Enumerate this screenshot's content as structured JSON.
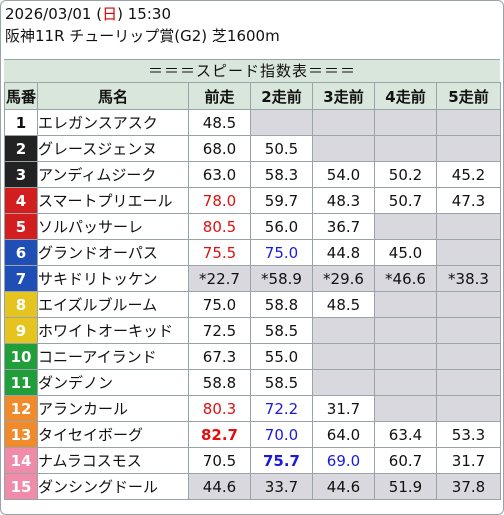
{
  "header": {
    "date": "2026/03/01",
    "day_open": "(",
    "day": "日",
    "day_close": ")",
    "time": "15:30",
    "race": "阪神11R チューリップ賞(G2) 芝1600m"
  },
  "banner": "＝＝＝スピード指数表＝＝＝",
  "columns": [
    "馬番",
    "馬名",
    "前走",
    "2走前",
    "3走前",
    "4走前",
    "5走前"
  ],
  "colors": {
    "frame1": "#ffffff",
    "frame2": "#222222",
    "frame3": "#d21e1e",
    "frame4": "#d21e1e",
    "frame5": "#e8e8f0",
    "frame6": "#1f4fb4",
    "frame7": "#e6c41f",
    "frame8": "#1f9e3a",
    "red_text": "#e01010",
    "blue_text": "#1a1adc",
    "header_bg": "#d9e6dc",
    "empty_bg": "#d8d8de"
  },
  "rows": [
    {
      "num": "1",
      "name": "エレガンスアスク",
      "bg": "#ffffff",
      "fg": "#111111",
      "cells": [
        {
          "v": "48.5"
        },
        {
          "v": "",
          "e": true
        },
        {
          "v": "",
          "e": true
        },
        {
          "v": "",
          "e": true
        },
        {
          "v": "",
          "e": true
        }
      ]
    },
    {
      "num": "2",
      "name": "グレースジェンヌ",
      "bg": "#222222",
      "fg": "#ffffff",
      "cells": [
        {
          "v": "68.0"
        },
        {
          "v": "50.5"
        },
        {
          "v": "",
          "e": true
        },
        {
          "v": "",
          "e": true
        },
        {
          "v": "",
          "e": true
        }
      ]
    },
    {
      "num": "3",
      "name": "アンディムジーク",
      "bg": "#222222",
      "fg": "#ffffff",
      "cells": [
        {
          "v": "63.0"
        },
        {
          "v": "58.3"
        },
        {
          "v": "54.0"
        },
        {
          "v": "50.2"
        },
        {
          "v": "45.2"
        }
      ]
    },
    {
      "num": "4",
      "name": "スマートプリエール",
      "bg": "#d21e1e",
      "fg": "#ffffff",
      "cells": [
        {
          "v": "78.0",
          "c": "red"
        },
        {
          "v": "59.7"
        },
        {
          "v": "48.3"
        },
        {
          "v": "50.7"
        },
        {
          "v": "47.3"
        }
      ]
    },
    {
      "num": "5",
      "name": "ソルパッサーレ",
      "bg": "#d21e1e",
      "fg": "#ffffff",
      "cells": [
        {
          "v": "80.5",
          "c": "red"
        },
        {
          "v": "56.0"
        },
        {
          "v": "36.7"
        },
        {
          "v": "",
          "e": true
        },
        {
          "v": "",
          "e": true
        }
      ]
    },
    {
      "num": "6",
      "name": "グランドオーパス",
      "bg": "#1f4fb4",
      "fg": "#ffffff",
      "cells": [
        {
          "v": "75.5",
          "c": "red"
        },
        {
          "v": "75.0",
          "c": "blue"
        },
        {
          "v": "44.8"
        },
        {
          "v": "45.0"
        },
        {
          "v": "",
          "e": true
        }
      ]
    },
    {
      "num": "7",
      "name": "サキドリトッケン",
      "bg": "#1f4fb4",
      "fg": "#ffffff",
      "shade": true,
      "cells": [
        {
          "v": "*22.7"
        },
        {
          "v": "*58.9"
        },
        {
          "v": "*29.6"
        },
        {
          "v": "*46.6"
        },
        {
          "v": "*38.3"
        }
      ]
    },
    {
      "num": "8",
      "name": "エイズルブルーム",
      "bg": "#e6c41f",
      "fg": "#ffffff",
      "cells": [
        {
          "v": "75.0"
        },
        {
          "v": "58.8"
        },
        {
          "v": "48.5"
        },
        {
          "v": "",
          "e": true
        },
        {
          "v": "",
          "e": true
        }
      ]
    },
    {
      "num": "9",
      "name": "ホワイトオーキッド",
      "bg": "#e6c41f",
      "fg": "#ffffff",
      "thick": true,
      "cells": [
        {
          "v": "72.5"
        },
        {
          "v": "58.5"
        },
        {
          "v": "",
          "e": true
        },
        {
          "v": "",
          "e": true
        },
        {
          "v": "",
          "e": true
        }
      ]
    },
    {
      "num": "10",
      "name": "コニーアイランド",
      "bg": "#1f9e3a",
      "fg": "#ffffff",
      "thick": true,
      "cells": [
        {
          "v": "67.3"
        },
        {
          "v": "55.0"
        },
        {
          "v": "",
          "e": true
        },
        {
          "v": "",
          "e": true
        },
        {
          "v": "",
          "e": true
        }
      ]
    },
    {
      "num": "11",
      "name": "ダンデノン",
      "bg": "#1f9e3a",
      "fg": "#ffffff",
      "cells": [
        {
          "v": "58.8"
        },
        {
          "v": "58.5"
        },
        {
          "v": "",
          "e": true
        },
        {
          "v": "",
          "e": true
        },
        {
          "v": "",
          "e": true
        }
      ]
    },
    {
      "num": "12",
      "name": "アランカール",
      "bg": "#f08a2a",
      "fg": "#ffffff",
      "thick": true,
      "cells": [
        {
          "v": "80.3",
          "c": "red"
        },
        {
          "v": "72.2",
          "c": "blue"
        },
        {
          "v": "31.7"
        },
        {
          "v": "",
          "e": true
        },
        {
          "v": "",
          "e": true
        }
      ]
    },
    {
      "num": "13",
      "name": "タイセイボーグ",
      "bg": "#f08a2a",
      "fg": "#ffffff",
      "thick": true,
      "cells": [
        {
          "v": "82.7",
          "c": "red",
          "b": true
        },
        {
          "v": "70.0",
          "c": "blue"
        },
        {
          "v": "64.0"
        },
        {
          "v": "63.4"
        },
        {
          "v": "53.3"
        }
      ]
    },
    {
      "num": "14",
      "name": "ナムラコスモス",
      "bg": "#f08caa",
      "fg": "#ffffff",
      "cells": [
        {
          "v": "70.5"
        },
        {
          "v": "75.7",
          "c": "blue",
          "b": true
        },
        {
          "v": "69.0",
          "c": "blue"
        },
        {
          "v": "60.7"
        },
        {
          "v": "31.7"
        }
      ]
    },
    {
      "num": "15",
      "name": "ダンシングドール",
      "bg": "#f08caa",
      "fg": "#ffffff",
      "shade": true,
      "cells": [
        {
          "v": "44.6"
        },
        {
          "v": "33.7"
        },
        {
          "v": "44.6"
        },
        {
          "v": "51.9"
        },
        {
          "v": "37.8"
        }
      ]
    }
  ]
}
